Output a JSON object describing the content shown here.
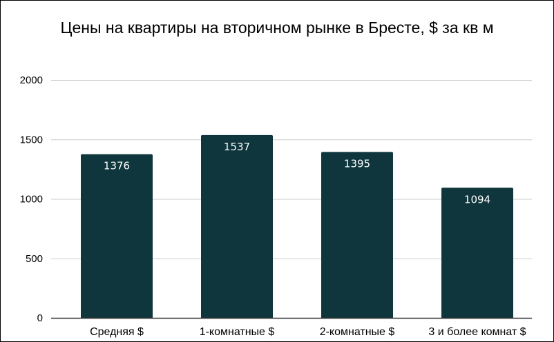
{
  "chart_data": {
    "type": "bar",
    "title": "Цены на квартиры на вторичном рынке в Бресте, $ за кв м",
    "xlabel": "",
    "ylabel": "",
    "categories": [
      "Средняя $",
      "1-комнатные $",
      "2-комнатные $",
      "3 и более комнат $"
    ],
    "values": [
      1376,
      1537,
      1395,
      1094
    ],
    "data_labels": [
      "1376",
      "1537",
      "1395",
      "1094"
    ],
    "ylim": [
      0,
      2000
    ],
    "yticks": [
      0,
      500,
      1000,
      1500,
      2000
    ],
    "ytick_labels": [
      "0",
      "500",
      "1000",
      "1500",
      "2000"
    ],
    "grid": true,
    "legend": "none",
    "colors": {
      "bar": "#0f363c",
      "grid": "#cccccc",
      "axis": "#333333",
      "data_label": "#ffffff"
    }
  }
}
